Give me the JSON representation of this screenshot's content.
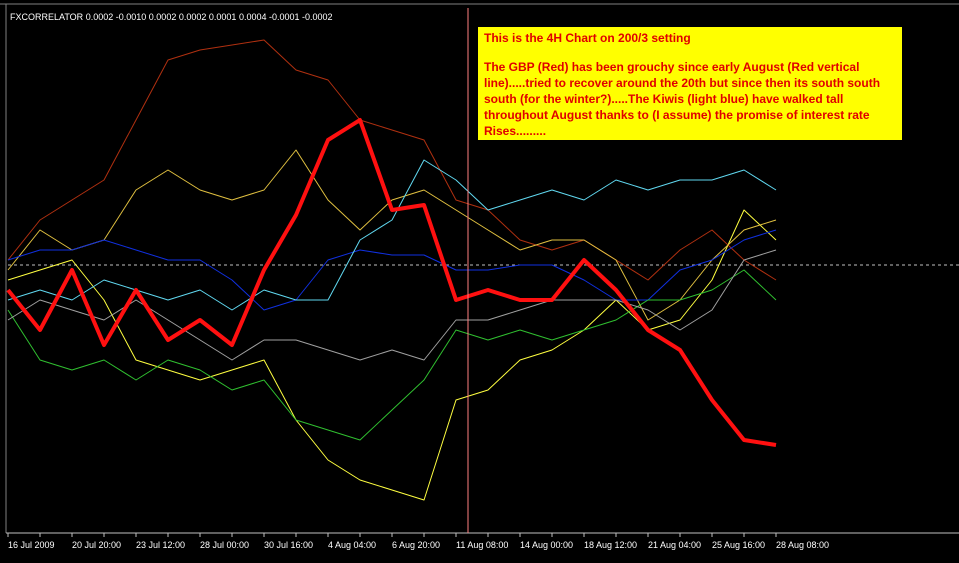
{
  "chart_data": {
    "type": "line",
    "header": {
      "label": "FXCORRELATOR",
      "values": [
        "0.0002",
        "-0.0010",
        "0.0002",
        "0.0002",
        "0.0001",
        "0.0004",
        "-0.0001",
        "-0.0002"
      ]
    },
    "annotation": {
      "title": "This is the 4H Chart on 200/3 setting",
      "text": "The GBP (Red) has been grouchy since early August (Red vertical line).....tried to recover around the 20th but since then its south south south (for the winter?).....The Kiwis (light blue) have walked tall throughout August thanks to (I assume) the promise of interest rate Rises........."
    },
    "categories": [
      "16 Jul 2009",
      null,
      "20 Jul 20:00",
      null,
      "23 Jul 12:00",
      null,
      "28 Jul 00:00",
      null,
      "30 Jul 16:00",
      null,
      "4 Aug 04:00",
      null,
      "6 Aug 20:00",
      null,
      "11 Aug 08:00",
      null,
      "14 Aug 00:00",
      null,
      "18 Aug 12:00",
      null,
      "21 Aug 04:00",
      null,
      "25 Aug 16:00",
      null,
      "28 Aug 08:00"
    ],
    "ylim": [
      0,
      52
    ],
    "series": [
      {
        "color": "#b03010",
        "values": [
          27,
          31,
          33,
          35,
          41,
          47,
          48,
          48.5,
          49,
          46,
          45,
          41,
          40,
          39,
          33,
          32,
          29,
          28,
          29,
          27,
          25,
          28,
          30,
          27,
          25
        ]
      },
      {
        "color": "#ffff40",
        "values": [
          25,
          26,
          27,
          23,
          17,
          16,
          15,
          16,
          17,
          11,
          7,
          5,
          4,
          3,
          13,
          14,
          17,
          18,
          20,
          23,
          20,
          21,
          25,
          32,
          29
        ]
      },
      {
        "color": "#e0c040",
        "values": [
          26,
          30,
          28,
          29,
          34,
          36,
          34,
          33,
          34,
          38,
          33,
          30,
          33,
          34,
          32,
          30,
          28,
          29,
          29,
          27,
          21,
          23,
          27,
          30,
          31
        ]
      },
      {
        "color": "#1030e0",
        "values": [
          27,
          28,
          28,
          29,
          28,
          27,
          27,
          25,
          22,
          23,
          27,
          28,
          27.5,
          27.5,
          26,
          26,
          26.5,
          26.5,
          25,
          23,
          23,
          26,
          27,
          29,
          30
        ]
      },
      {
        "color": "#60d8f0",
        "values": [
          23,
          24,
          23,
          25,
          24,
          23,
          24,
          22,
          24,
          23,
          23,
          29,
          31,
          37,
          35,
          32,
          33,
          34,
          33,
          35,
          34,
          35,
          35,
          36,
          34
        ]
      },
      {
        "color": "#30c030",
        "values": [
          22,
          17,
          16,
          17,
          15,
          17,
          16,
          14,
          15,
          11,
          10,
          9,
          12,
          15,
          20,
          19,
          20,
          19,
          20,
          21,
          23,
          23,
          24,
          26,
          23
        ]
      },
      {
        "color": "#a0a0a0",
        "values": [
          21,
          23,
          22,
          21,
          23,
          21,
          19,
          17,
          19,
          19,
          18,
          17,
          18,
          17,
          21,
          21,
          22,
          23,
          23,
          23,
          22,
          20,
          22,
          27,
          28
        ]
      },
      {
        "color": "#ff1010",
        "width": 4,
        "values": [
          24,
          20,
          26,
          18.5,
          24,
          19,
          21,
          18.5,
          26,
          31.5,
          39,
          41,
          32,
          32.5,
          23,
          24,
          23,
          23,
          27,
          24,
          20,
          18,
          13,
          9,
          8.5
        ]
      }
    ]
  }
}
